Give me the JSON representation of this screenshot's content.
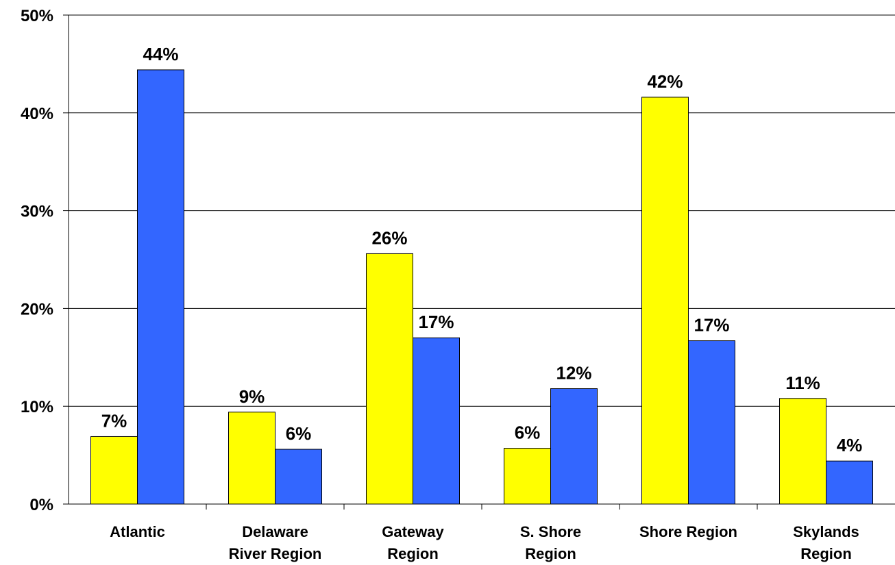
{
  "chart_data": {
    "type": "bar",
    "categories": [
      [
        "Atlantic"
      ],
      [
        "Delaware",
        "River Region"
      ],
      [
        "Gateway",
        "Region"
      ],
      [
        "S. Shore",
        "Region"
      ],
      [
        "Shore Region"
      ],
      [
        "Skylands",
        "Region"
      ]
    ],
    "series": [
      {
        "color": "#ffff00",
        "values": [
          6.9,
          9.4,
          25.6,
          5.7,
          41.6,
          10.8
        ],
        "labels": [
          "7%",
          "9%",
          "26%",
          "6%",
          "42%",
          "11%"
        ]
      },
      {
        "color": "#3366ff",
        "values": [
          44.4,
          5.6,
          17.0,
          11.8,
          16.7,
          4.4
        ],
        "labels": [
          "44%",
          "6%",
          "17%",
          "12%",
          "17%",
          "4%"
        ]
      }
    ],
    "y_ticks": [
      "0%",
      "10%",
      "20%",
      "30%",
      "40%",
      "50%"
    ],
    "ylim": [
      0,
      50
    ],
    "y_step": 10,
    "grid": true,
    "legend": "none",
    "title": "",
    "xlabel": "",
    "ylabel": ""
  }
}
